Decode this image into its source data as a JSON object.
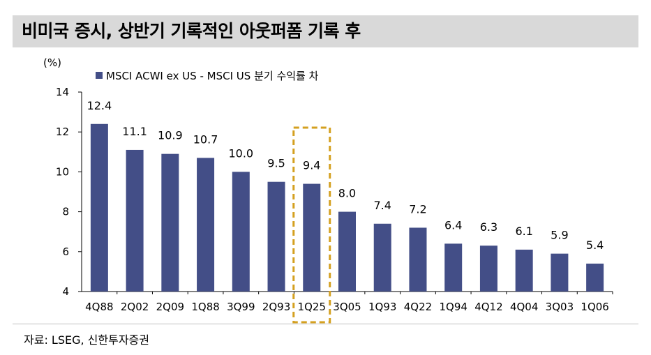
{
  "header": {
    "title": "비미국 증시, 상반기 기록적인 아웃퍼폼 기록 후"
  },
  "footer": {
    "source": "자료: LSEG, 신한투자증권"
  },
  "colors": {
    "bar": "#434e87",
    "highlight_box": "#d4a020",
    "title_bg": "#d9d9d9"
  },
  "chart_data": {
    "type": "bar",
    "title": "",
    "unit_label": "(%)",
    "xlabel": "",
    "ylabel": "(%)",
    "ylim": [
      4,
      14
    ],
    "yticks": [
      4,
      6,
      8,
      10,
      12,
      14
    ],
    "legend": {
      "position": "top-left",
      "entries": [
        "MSCI ACWI ex US - MSCI US 분기 수익률 차"
      ]
    },
    "categories": [
      "4Q88",
      "2Q02",
      "2Q09",
      "1Q88",
      "3Q99",
      "2Q93",
      "1Q25",
      "3Q05",
      "1Q93",
      "4Q22",
      "1Q94",
      "4Q12",
      "4Q04",
      "3Q03",
      "1Q06"
    ],
    "series": [
      {
        "name": "MSCI ACWI ex US - MSCI US 분기 수익률 차",
        "values": [
          12.4,
          11.1,
          10.9,
          10.7,
          10.0,
          9.5,
          9.4,
          8.0,
          7.4,
          7.2,
          6.4,
          6.3,
          6.1,
          5.9,
          5.4
        ],
        "labels": [
          "12.4",
          "11.1",
          "10.9",
          "10.7",
          "10.0",
          "9.5",
          "9.4",
          "8.0",
          "7.4",
          "7.2",
          "6.4",
          "6.3",
          "6.1",
          "5.9",
          "5.4"
        ]
      }
    ],
    "highlight_category": "1Q25",
    "grid": false
  }
}
